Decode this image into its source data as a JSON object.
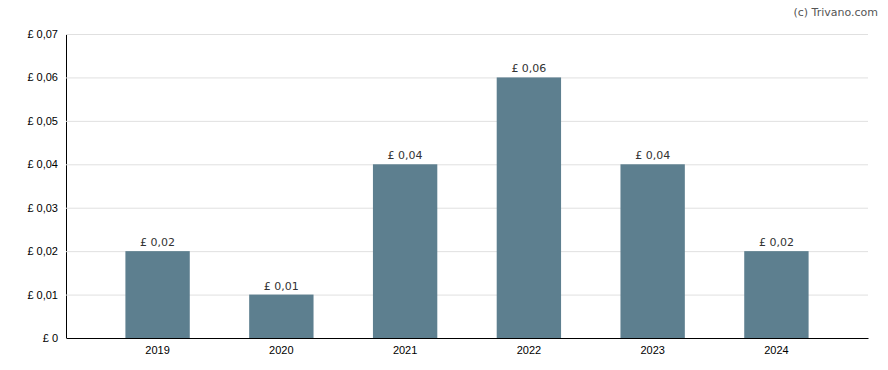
{
  "chart_data": {
    "type": "bar",
    "categories": [
      "2019",
      "2020",
      "2021",
      "2022",
      "2023",
      "2024"
    ],
    "values": [
      0.02,
      0.01,
      0.04,
      0.06,
      0.04,
      0.02
    ],
    "value_labels": [
      "£ 0,02",
      "£ 0,01",
      "£ 0,04",
      "£ 0,06",
      "£ 0,04",
      "£ 0,02"
    ],
    "data_labels": true,
    "color": "#5d7f8f",
    "ylim": [
      0,
      0.07
    ],
    "yticks": [
      {
        "value": 0,
        "label": "£ 0"
      },
      {
        "value": 0.01,
        "label": "£ 0,01"
      },
      {
        "value": 0.02,
        "label": "£ 0,02"
      },
      {
        "value": 0.03,
        "label": "£ 0,03"
      },
      {
        "value": 0.04,
        "label": "£ 0,04"
      },
      {
        "value": 0.05,
        "label": "£ 0,05"
      },
      {
        "value": 0.06,
        "label": "£ 0,06"
      },
      {
        "value": 0.07,
        "label": "£ 0,07"
      }
    ],
    "grid": true,
    "annotations": [
      "(c) Trivano.com"
    ]
  }
}
